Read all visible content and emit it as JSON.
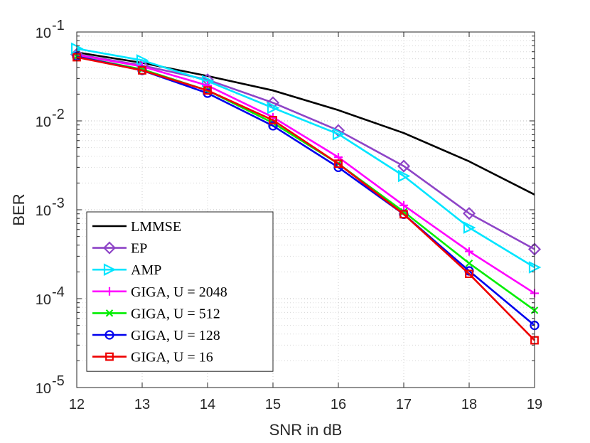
{
  "chart_data": {
    "type": "line",
    "title": "",
    "xlabel": "SNR in dB",
    "ylabel": "BER",
    "x_axis": {
      "scale": "linear",
      "lim": [
        12,
        19
      ],
      "ticks": [
        12,
        13,
        14,
        15,
        16,
        17,
        18,
        19
      ]
    },
    "y_axis": {
      "scale": "log",
      "lim": [
        1e-05,
        0.1
      ],
      "ticks": [
        {
          "value": 0.1,
          "base": "10",
          "exp": "-1"
        },
        {
          "value": 0.01,
          "base": "10",
          "exp": "-2"
        },
        {
          "value": 0.001,
          "base": "10",
          "exp": "-3"
        },
        {
          "value": 0.0001,
          "base": "10",
          "exp": "-4"
        },
        {
          "value": 1e-05,
          "base": "10",
          "exp": "-5"
        }
      ]
    },
    "grid": true,
    "minor_grid": true,
    "legend_position": "bottom-left",
    "x": [
      12,
      13,
      14,
      15,
      16,
      17,
      18,
      19
    ],
    "series": [
      {
        "name": "LMMSE",
        "color": "#000000",
        "marker": "none",
        "values": [
          0.059,
          0.045,
          0.032,
          0.022,
          0.0132,
          0.0073,
          0.0035,
          0.00148
        ]
      },
      {
        "name": "EP",
        "color": "#8e44c7",
        "marker": "diamond",
        "values": [
          0.056,
          0.042,
          0.029,
          0.016,
          0.0078,
          0.0031,
          0.00091,
          0.00036
        ]
      },
      {
        "name": "AMP",
        "color": "#00e5ff",
        "marker": "triangle-right",
        "values": [
          0.065,
          0.048,
          0.028,
          0.014,
          0.0071,
          0.0024,
          0.00063,
          0.000225
        ]
      },
      {
        "name": "GIGA, U = 2048",
        "color": "#ff00ff",
        "marker": "plus",
        "values": [
          0.055,
          0.041,
          0.025,
          0.011,
          0.0039,
          0.00112,
          0.00034,
          0.000115
        ]
      },
      {
        "name": "GIGA, U = 512",
        "color": "#00ee00",
        "marker": "x",
        "values": [
          0.053,
          0.038,
          0.022,
          0.0095,
          0.0033,
          0.00095,
          0.00025,
          7.4e-05
        ]
      },
      {
        "name": "GIGA, U = 128",
        "color": "#0000ee",
        "marker": "circle",
        "values": [
          0.053,
          0.037,
          0.0205,
          0.0088,
          0.003,
          0.00089,
          0.000205,
          5e-05
        ]
      },
      {
        "name": "GIGA, U = 16",
        "color": "#ee0000",
        "marker": "square",
        "values": [
          0.052,
          0.037,
          0.022,
          0.0102,
          0.0033,
          0.00089,
          0.00019,
          3.4e-05
        ]
      }
    ]
  }
}
